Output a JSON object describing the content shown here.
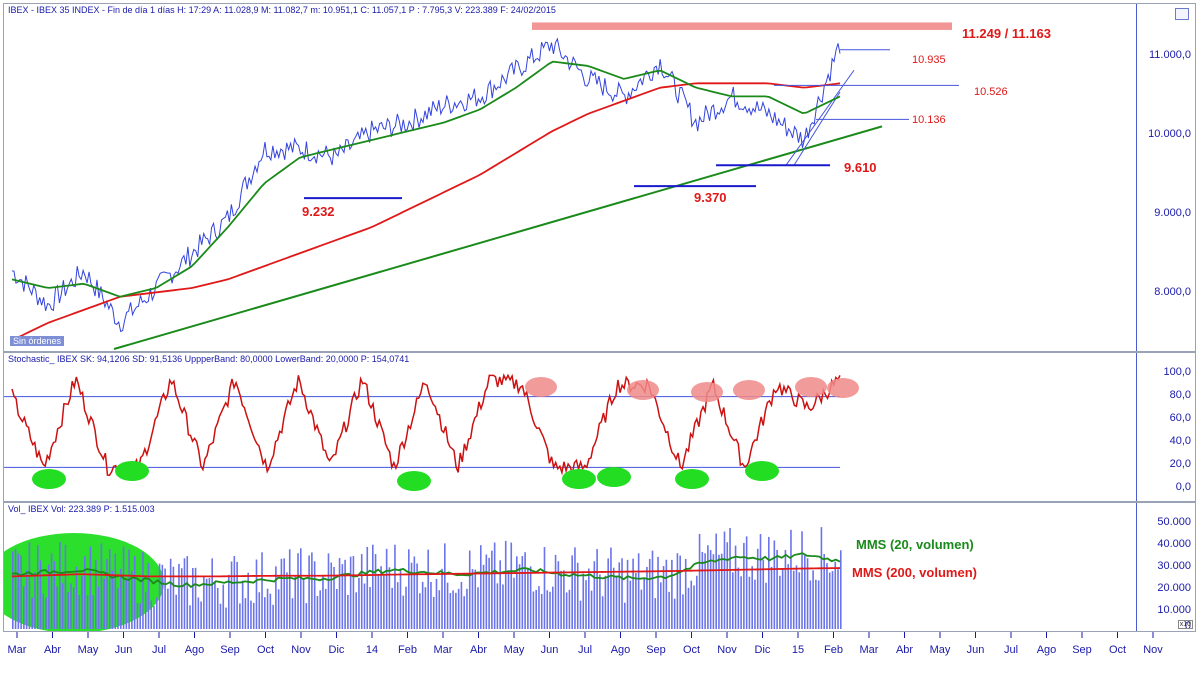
{
  "price_panel": {
    "title": "IBEX - IBEX 35 INDEX - Fin de día 1 días  H: 17:29  A: 11.028,9  M: 11.082,7  m: 10.951,1  C: 11.057,1  P : 7.795,3  V: 223.389  F: 24/02/2015",
    "badge": "Sin órdenes",
    "annotations": {
      "resistance": "11.249 / 11.163",
      "l10935": "10.935",
      "l10526": "10.526",
      "l10136": "10.136",
      "l9610": "9.610",
      "l9370": "9.370",
      "l9232": "9.232"
    },
    "y_ticks": [
      "11.000,0",
      "10.000,0",
      "9.000,0",
      "8.000,0"
    ]
  },
  "stoch_panel": {
    "title": "Stochastic_ IBEX  SK: 94,1206  SD: 91,5136  UppperBand: 80,0000  LowerBand: 20,0000  P: 154,0741",
    "y_ticks": [
      "100,0",
      "80,0",
      "60,0",
      "40,0",
      "20,0",
      "0,0"
    ]
  },
  "vol_panel": {
    "title": "Vol_ IBEX  Vol: 223.389  P: 1.515.003",
    "labels": {
      "mms20": "MMS (20, volumen)",
      "mms200": "MMS (200, volumen)"
    },
    "y_ticks": [
      "50.000",
      "40.000",
      "30.000",
      "20.000",
      "10.000",
      "0"
    ],
    "corner": "x10"
  },
  "x_axis": {
    "labels": [
      "Mar",
      "Abr",
      "May",
      "Jun",
      "Jul",
      "Ago",
      "Sep",
      "Oct",
      "Nov",
      "Dic",
      "14",
      "Feb",
      "Mar",
      "Abr",
      "May",
      "Jun",
      "Jul",
      "Ago",
      "Sep",
      "Oct",
      "Nov",
      "Dic",
      "15",
      "Feb",
      "Mar",
      "Abr",
      "May",
      "Jun",
      "Jul",
      "Ago",
      "Sep",
      "Oct",
      "Nov"
    ]
  },
  "colors": {
    "price": "#3344dd",
    "sma200": "#e01818",
    "sma50": "#1a8a1a",
    "trend": "#1a8a1a",
    "annot": "#e01818",
    "support": "#1a1acc",
    "vol_bar": "#6b74e8",
    "circle_green": "#22dd22",
    "circle_red": "#f08a8a"
  },
  "chart_data": [
    {
      "type": "line",
      "title": "IBEX 35 INDEX",
      "x": [
        "Mar 2013",
        "Abr",
        "May",
        "Jun",
        "Jul",
        "Ago",
        "Sep",
        "Oct",
        "Nov",
        "Dic",
        "Ene 2014",
        "Feb",
        "Mar",
        "Abr",
        "May",
        "Jun",
        "Jul",
        "Ago",
        "Sep",
        "Oct",
        "Nov",
        "Dic",
        "Ene 2015",
        "Feb 2015"
      ],
      "series": [
        {
          "name": "price",
          "values": [
            8400,
            8000,
            8400,
            7800,
            8200,
            8600,
            9000,
            9800,
            9800,
            9700,
            10000,
            10100,
            10300,
            10400,
            10700,
            11000,
            10600,
            10400,
            10800,
            10100,
            10400,
            10200,
            9900,
            11000
          ]
        },
        {
          "name": "sma200",
          "values": [
            7600,
            7800,
            7950,
            8100,
            8150,
            8200,
            8300,
            8450,
            8600,
            8750,
            8900,
            9100,
            9300,
            9500,
            9750,
            10000,
            10200,
            10350,
            10500,
            10550,
            10550,
            10550,
            10500,
            10550
          ]
        },
        {
          "name": "sma50",
          "values": [
            8300,
            8200,
            8250,
            8100,
            8200,
            8450,
            8900,
            9400,
            9700,
            9800,
            9900,
            10000,
            10100,
            10250,
            10500,
            10800,
            10750,
            10600,
            10700,
            10500,
            10400,
            10400,
            10200,
            10400
          ]
        }
      ],
      "ylim": [
        7500,
        11300
      ],
      "levels": [
        11249,
        11163,
        10935,
        10526,
        10136,
        9610,
        9370,
        9232
      ]
    },
    {
      "type": "line",
      "title": "Stochastic",
      "series": [
        {
          "name": "SK",
          "values": [
            80,
            20,
            95,
            20,
            20,
            95,
            20,
            95,
            20,
            95,
            20,
            95,
            20,
            95,
            20,
            95,
            90,
            20,
            20,
            90,
            90,
            20,
            90,
            20,
            90,
            70,
            95
          ]
        }
      ],
      "bands": [
        80,
        20
      ],
      "ylim": [
        0,
        100
      ]
    },
    {
      "type": "bar",
      "title": "Vol",
      "series": [
        {
          "name": "MMS (20, volumen)",
          "values": [
            25000,
            26000,
            27000,
            24000,
            22000,
            20000,
            21000,
            22000,
            23000,
            23000,
            25000,
            27000,
            26000,
            25000,
            26000,
            27000,
            25000,
            24000,
            23000,
            24000,
            30000,
            33000,
            32000,
            34000,
            31000
          ]
        },
        {
          "name": "MMS (200, volumen)",
          "values": [
            24000,
            24500,
            25000,
            24500,
            24000,
            24000,
            24000,
            24200,
            24300,
            24300,
            24500,
            24800,
            25000,
            25200,
            25400,
            25600,
            25800,
            26000,
            26200,
            26400,
            26700,
            27000,
            27300,
            27600,
            27800
          ]
        }
      ],
      "ylim": [
        0,
        52000
      ]
    }
  ]
}
